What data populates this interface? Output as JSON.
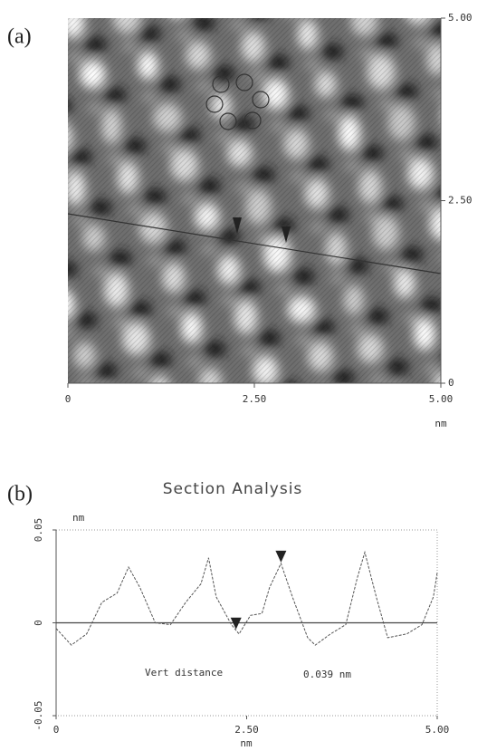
{
  "chart_data": [
    {
      "type": "image",
      "label": "(a)",
      "xlim": [
        0,
        5
      ],
      "xticks": [
        0,
        {
          "value": 2.5,
          "label": "2.50"
        },
        {
          "value": 5,
          "label": "5.00"
        }
      ],
      "x_unit": "nm",
      "ylim": [
        0,
        5
      ],
      "yticks": [
        0,
        {
          "value": 2.5,
          "label": "2.50"
        },
        {
          "value": 5,
          "label": "5.00"
        }
      ]
    },
    {
      "type": "line",
      "label": "(b)",
      "title": "Section Analysis",
      "y_unit": "nm",
      "x_unit": "nm",
      "xlim": [
        0,
        5
      ],
      "xticks": [
        0,
        {
          "value": 2.5,
          "label": "2.50"
        },
        {
          "value": 5,
          "label": "5.00"
        }
      ],
      "ylim": [
        -0.05,
        0.05
      ],
      "yticks": [
        0.05,
        0,
        -0.05
      ],
      "zero_line": true,
      "color": "#555555",
      "x": [
        0,
        0.2,
        0.4,
        0.6,
        0.8,
        0.95,
        1.1,
        1.3,
        1.5,
        1.7,
        1.9,
        2.0,
        2.1,
        2.3,
        2.4,
        2.55,
        2.7,
        2.8,
        2.95,
        3.1,
        3.3,
        3.4,
        3.6,
        3.8,
        3.95,
        4.05,
        4.2,
        4.35,
        4.6,
        4.8,
        4.95,
        5.0
      ],
      "values": [
        -0.003,
        -0.012,
        -0.006,
        0.011,
        0.016,
        0.03,
        0.019,
        0.0,
        -0.001,
        0.011,
        0.021,
        0.035,
        0.014,
        -0.001,
        -0.006,
        0.004,
        0.005,
        0.019,
        0.032,
        0.014,
        -0.008,
        -0.012,
        -0.006,
        -0.001,
        0.024,
        0.038,
        0.014,
        -0.008,
        -0.006,
        -0.001,
        0.014,
        0.027
      ],
      "markers_x": [
        2.36,
        2.95
      ],
      "annotation_label": "Vert distance",
      "annotation_value": "0.039 nm"
    }
  ]
}
